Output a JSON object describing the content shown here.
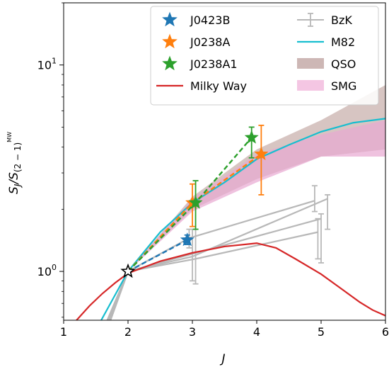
{
  "chart_data": {
    "type": "line",
    "xlabel": "J",
    "ylabel_main": "S",
    "ylabel_sub_main": "J",
    "ylabel_mid": "/S",
    "ylabel_sub": "(2 − 1)",
    "ylabel_sup": "MW",
    "xlim": [
      1,
      6
    ],
    "ylim": [
      0.58,
      20
    ],
    "yscale": "log",
    "xticks": [
      1,
      2,
      3,
      4,
      5,
      6
    ],
    "yticks": [
      {
        "value": 1,
        "base": "10",
        "exp": "0"
      },
      {
        "value": 10,
        "base": "10",
        "exp": "1"
      }
    ],
    "legend_position": "top-right",
    "legend": {
      "left": [
        {
          "label": "J0423B",
          "kind": "star",
          "color": "#1f77b4"
        },
        {
          "label": "J0238A",
          "kind": "star",
          "color": "#ff7f0e"
        },
        {
          "label": "J0238A1",
          "kind": "star",
          "color": "#2ca02c"
        },
        {
          "label": "Milky Way",
          "kind": "line",
          "color": "#d62728"
        }
      ],
      "right": [
        {
          "label": "BzK",
          "kind": "errorbar",
          "color": "#b8b8b8"
        },
        {
          "label": "M82",
          "kind": "line",
          "color": "#17becf"
        },
        {
          "label": "QSO",
          "kind": "band",
          "color": "#cdb7b5"
        },
        {
          "label": "SMG",
          "kind": "band",
          "color": "#f4c6e3"
        }
      ]
    },
    "qso_band": {
      "color": "#c9b1ae",
      "x": [
        2,
        3,
        4,
        5,
        6
      ],
      "lower": [
        1.0,
        2.0,
        2.8,
        3.6,
        3.9
      ],
      "upper": [
        1.0,
        2.3,
        3.9,
        5.4,
        8.0
      ]
    },
    "smg_band": {
      "color": "#e8a8d2",
      "x": [
        2,
        3,
        4,
        5,
        6
      ],
      "lower": [
        1.0,
        1.95,
        2.7,
        3.6,
        3.6
      ],
      "upper": [
        1.0,
        2.25,
        3.7,
        4.6,
        5.4
      ]
    },
    "m82": {
      "color": "#17becf",
      "x": [
        1.5,
        2,
        2.5,
        3,
        3.5,
        4,
        4.5,
        5,
        5.5,
        6
      ],
      "y": [
        0.52,
        1.0,
        1.55,
        2.15,
        2.7,
        3.5,
        4.1,
        4.75,
        5.25,
        5.5
      ]
    },
    "milky_way": {
      "color": "#d62728",
      "x": [
        1,
        1.2,
        1.4,
        1.6,
        1.8,
        2,
        2.5,
        3,
        3.5,
        4,
        4.3,
        4.6,
        5,
        5.3,
        5.6,
        5.8,
        6
      ],
      "y": [
        0.5,
        0.58,
        0.68,
        0.78,
        0.88,
        0.98,
        1.12,
        1.23,
        1.32,
        1.37,
        1.3,
        1.15,
        0.97,
        0.83,
        0.71,
        0.65,
        0.61
      ]
    },
    "bzk": {
      "color": "#b8b8b8",
      "lines": [
        {
          "x": [
            1.5,
            2,
            3,
            5.1
          ],
          "y": [
            0.43,
            1.0,
            1.18,
            2.25
          ],
          "err_x": [
            3,
            5.1
          ],
          "err_lo": [
            0.9,
            1.6
          ],
          "err_hi": [
            1.6,
            2.35
          ]
        },
        {
          "x": [
            1.6,
            2,
            3.05,
            4.95
          ],
          "y": [
            0.45,
            1.0,
            1.15,
            1.55
          ],
          "err_x": [
            3.05,
            4.95
          ],
          "err_lo": [
            0.87,
            1.15
          ],
          "err_hi": [
            1.6,
            1.8
          ]
        },
        {
          "x": [
            1.55,
            2,
            2.95,
            4.9
          ],
          "y": [
            0.44,
            1.0,
            1.45,
            2.2
          ],
          "err_x": [
            2.95,
            4.9
          ],
          "err_lo": [
            1.3,
            1.95
          ],
          "err_hi": [
            1.6,
            2.6
          ]
        },
        {
          "x": [
            1.6,
            2,
            5.0
          ],
          "y": [
            0.45,
            1.0,
            1.8
          ],
          "err_x": [
            5.0
          ],
          "err_lo": [
            1.1
          ],
          "err_hi": [
            1.9
          ]
        }
      ]
    },
    "points": [
      {
        "label": "J0423B",
        "color": "#1f77b4",
        "x": [
          2,
          2.92
        ],
        "y": [
          1.0,
          1.42
        ],
        "err_lo": [
          null,
          1.35
        ],
        "err_hi": [
          null,
          1.5
        ]
      },
      {
        "label": "J0238A",
        "color": "#ff7f0e",
        "x": [
          2,
          3.0,
          4.07
        ],
        "y": [
          1.0,
          2.15,
          3.7
        ],
        "err_lo": [
          null,
          1.65,
          2.35
        ],
        "err_hi": [
          null,
          2.65,
          5.1
        ]
      },
      {
        "label": "J0238A1",
        "color": "#2ca02c",
        "x": [
          2,
          3.05,
          3.92
        ],
        "y": [
          1.0,
          2.15,
          4.45
        ],
        "err_lo": [
          null,
          1.6,
          3.55
        ],
        "err_hi": [
          null,
          2.75,
          5.0
        ]
      }
    ],
    "normalization_point": {
      "x": 2,
      "y": 1.0,
      "color": "#000000"
    }
  }
}
